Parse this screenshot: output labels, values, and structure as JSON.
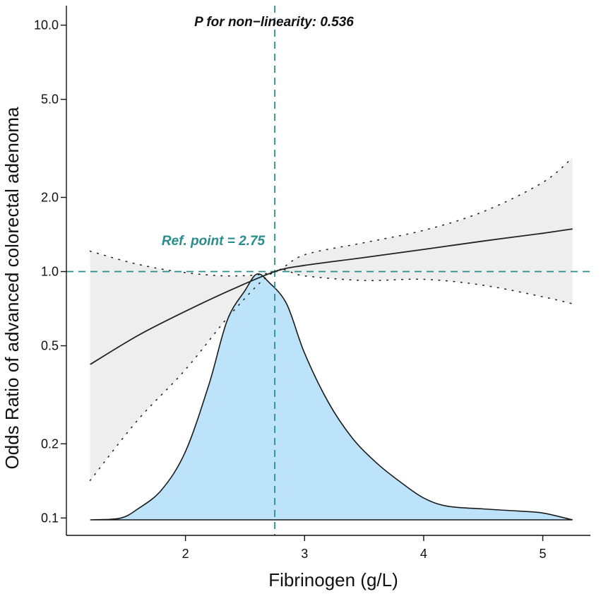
{
  "chart_data": {
    "type": "line",
    "title": "P for non−linearity: 0.536",
    "xlabel": "Fibrinogen (g/L)",
    "ylabel": "Odds Ratio of advanced colorectal adenoma",
    "xlim": [
      1.0,
      5.4
    ],
    "ylim": [
      0.085,
      12.0
    ],
    "yscale": "log",
    "xticks": [
      2,
      3,
      4,
      5
    ],
    "yticks": [
      {
        "value": 0.1,
        "label": "0.1"
      },
      {
        "value": 0.2,
        "label": "0.2"
      },
      {
        "value": 0.5,
        "label": "0.5"
      },
      {
        "value": 1.0,
        "label": "1.0"
      },
      {
        "value": 2.0,
        "label": "2.0"
      },
      {
        "value": 5.0,
        "label": "5.0"
      },
      {
        "value": 10.0,
        "label": "10.0"
      }
    ],
    "reference": {
      "x": 2.75,
      "y": 1.0,
      "label": "Ref. point = 2.75",
      "color": "#2a8c8c"
    },
    "series": [
      {
        "name": "OR",
        "kind": "line",
        "color": "#222222",
        "x": [
          1.2,
          1.6,
          2.0,
          2.4,
          2.75,
          3.0,
          3.5,
          4.0,
          4.5,
          5.0,
          5.25
        ],
        "y": [
          0.42,
          0.55,
          0.69,
          0.85,
          1.0,
          1.06,
          1.14,
          1.23,
          1.33,
          1.43,
          1.49
        ]
      },
      {
        "name": "95% CI upper",
        "kind": "ci-upper",
        "color": "#222222",
        "x": [
          1.2,
          1.6,
          2.0,
          2.4,
          2.75,
          3.0,
          3.5,
          4.0,
          4.5,
          5.0,
          5.25
        ],
        "y": [
          1.21,
          1.07,
          0.99,
          0.96,
          1.0,
          1.17,
          1.31,
          1.47,
          1.75,
          2.3,
          2.9
        ]
      },
      {
        "name": "95% CI lower",
        "kind": "ci-lower",
        "color": "#222222",
        "x": [
          1.2,
          1.6,
          2.0,
          2.4,
          2.75,
          3.0,
          3.5,
          4.0,
          4.5,
          5.0,
          5.25
        ],
        "y": [
          0.142,
          0.25,
          0.4,
          0.69,
          1.0,
          0.96,
          0.92,
          0.93,
          0.88,
          0.79,
          0.74
        ]
      },
      {
        "name": "Fibrinogen distribution (density)",
        "kind": "density",
        "color": "#bde3fa",
        "x": [
          1.2,
          1.45,
          1.6,
          1.8,
          2.0,
          2.2,
          2.35,
          2.5,
          2.6,
          2.7,
          2.85,
          3.0,
          3.2,
          3.4,
          3.6,
          3.8,
          4.0,
          4.2,
          4.5,
          4.8,
          5.0,
          5.25
        ],
        "y": [
          0.0,
          0.006,
          0.04,
          0.11,
          0.25,
          0.5,
          0.73,
          0.84,
          0.9,
          0.87,
          0.79,
          0.61,
          0.43,
          0.3,
          0.21,
          0.14,
          0.08,
          0.05,
          0.04,
          0.032,
          0.025,
          0.0
        ]
      }
    ]
  }
}
